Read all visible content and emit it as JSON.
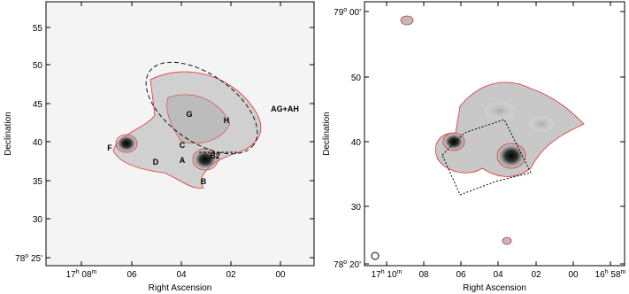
{
  "left": {
    "x_label": "Right Ascension",
    "y_label": "Declination",
    "xticks": [
      [
        "17",
        "h",
        " 08",
        "m"
      ],
      [
        "06"
      ],
      [
        "04"
      ],
      [
        "02"
      ],
      [
        "00"
      ]
    ],
    "yticks": [
      [
        "55"
      ],
      [
        "50"
      ],
      [
        "45"
      ],
      [
        "40"
      ],
      [
        "35"
      ],
      [
        "30"
      ],
      [
        "78",
        "o",
        " 25'"
      ]
    ],
    "sources": [
      "F",
      "D",
      "A",
      "B",
      "C",
      "B2",
      "G",
      "H",
      "AG+AH"
    ]
  },
  "right": {
    "x_label": "Right Ascension",
    "y_label": "Declination",
    "xticks": [
      [
        "17",
        "h",
        " 10",
        "m"
      ],
      [
        "08"
      ],
      [
        "06"
      ],
      [
        "04"
      ],
      [
        "02"
      ],
      [
        "00"
      ],
      [
        "16",
        "h",
        " 58",
        "m"
      ]
    ],
    "yticks": [
      [
        "79",
        "o",
        " 00'"
      ],
      [
        "50"
      ],
      [
        "40"
      ],
      [
        "30"
      ],
      [
        "78",
        "o",
        " 20'"
      ]
    ]
  }
}
